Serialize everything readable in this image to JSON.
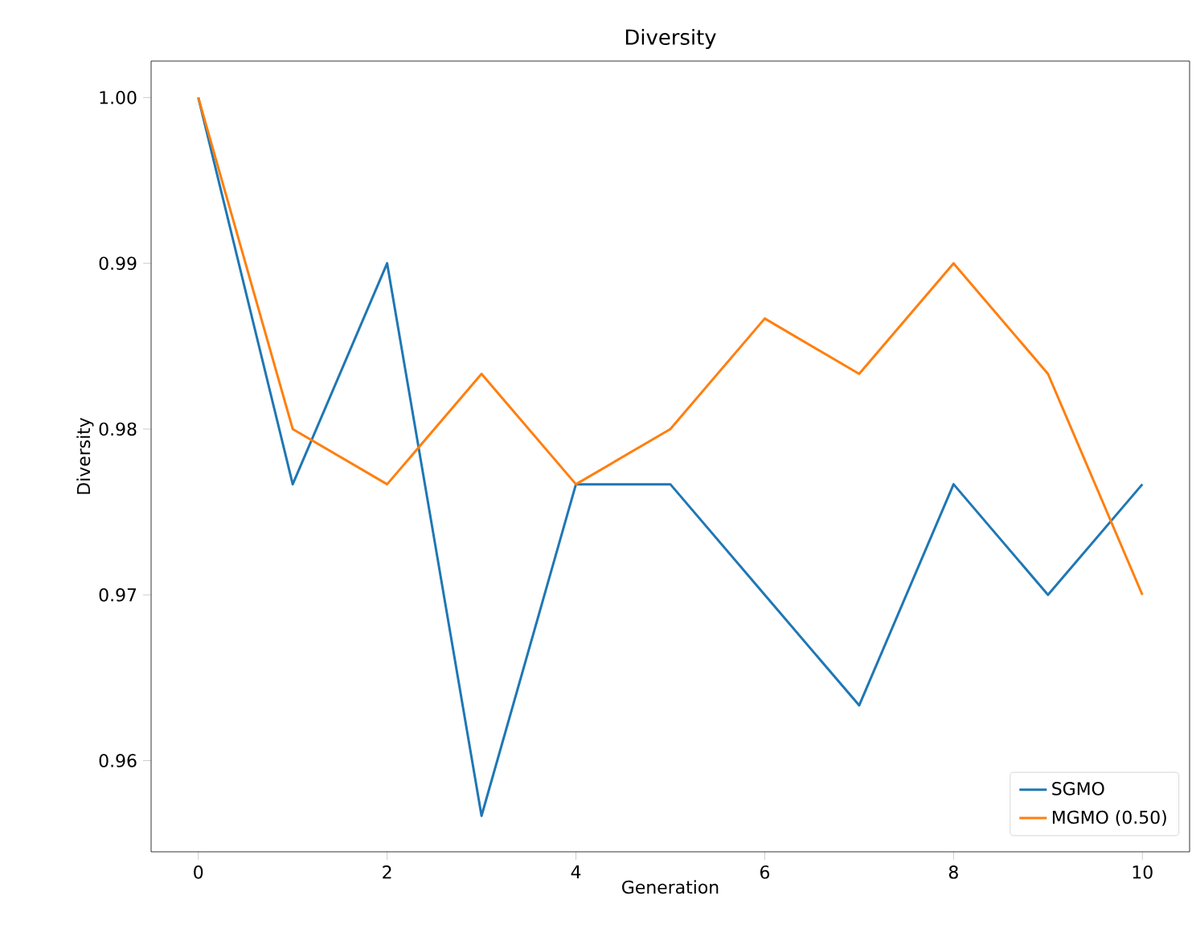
{
  "chart_data": {
    "type": "line",
    "title": "Diversity",
    "xlabel": "Generation",
    "ylabel": "Diversity",
    "x": [
      0,
      1,
      2,
      3,
      4,
      5,
      6,
      7,
      8,
      9,
      10
    ],
    "series": [
      {
        "name": "SGMO",
        "color": "#1f77b4",
        "values": [
          1.0,
          0.97667,
          0.99,
          0.95667,
          0.97667,
          0.97667,
          0.97,
          0.96333,
          0.97667,
          0.97,
          0.97667
        ]
      },
      {
        "name": "MGMO (0.50)",
        "color": "#ff7f0e",
        "values": [
          1.0,
          0.98,
          0.97667,
          0.98333,
          0.97667,
          0.98,
          0.98667,
          0.98333,
          0.99,
          0.98333,
          0.97
        ]
      }
    ],
    "xlim": [
      -0.5,
      10.5
    ],
    "ylim": [
      0.9545,
      1.0022
    ],
    "xticks": [
      0,
      2,
      4,
      6,
      8,
      10
    ],
    "yticks": [
      {
        "value": 0.96,
        "label": "0.96"
      },
      {
        "value": 0.97,
        "label": "0.97"
      },
      {
        "value": 0.98,
        "label": "0.98"
      },
      {
        "value": 0.99,
        "label": "0.99"
      },
      {
        "value": 1.0,
        "label": "1.00"
      }
    ],
    "legend": "bottom right",
    "grid": false,
    "marker": "none",
    "line_style": "solid"
  }
}
